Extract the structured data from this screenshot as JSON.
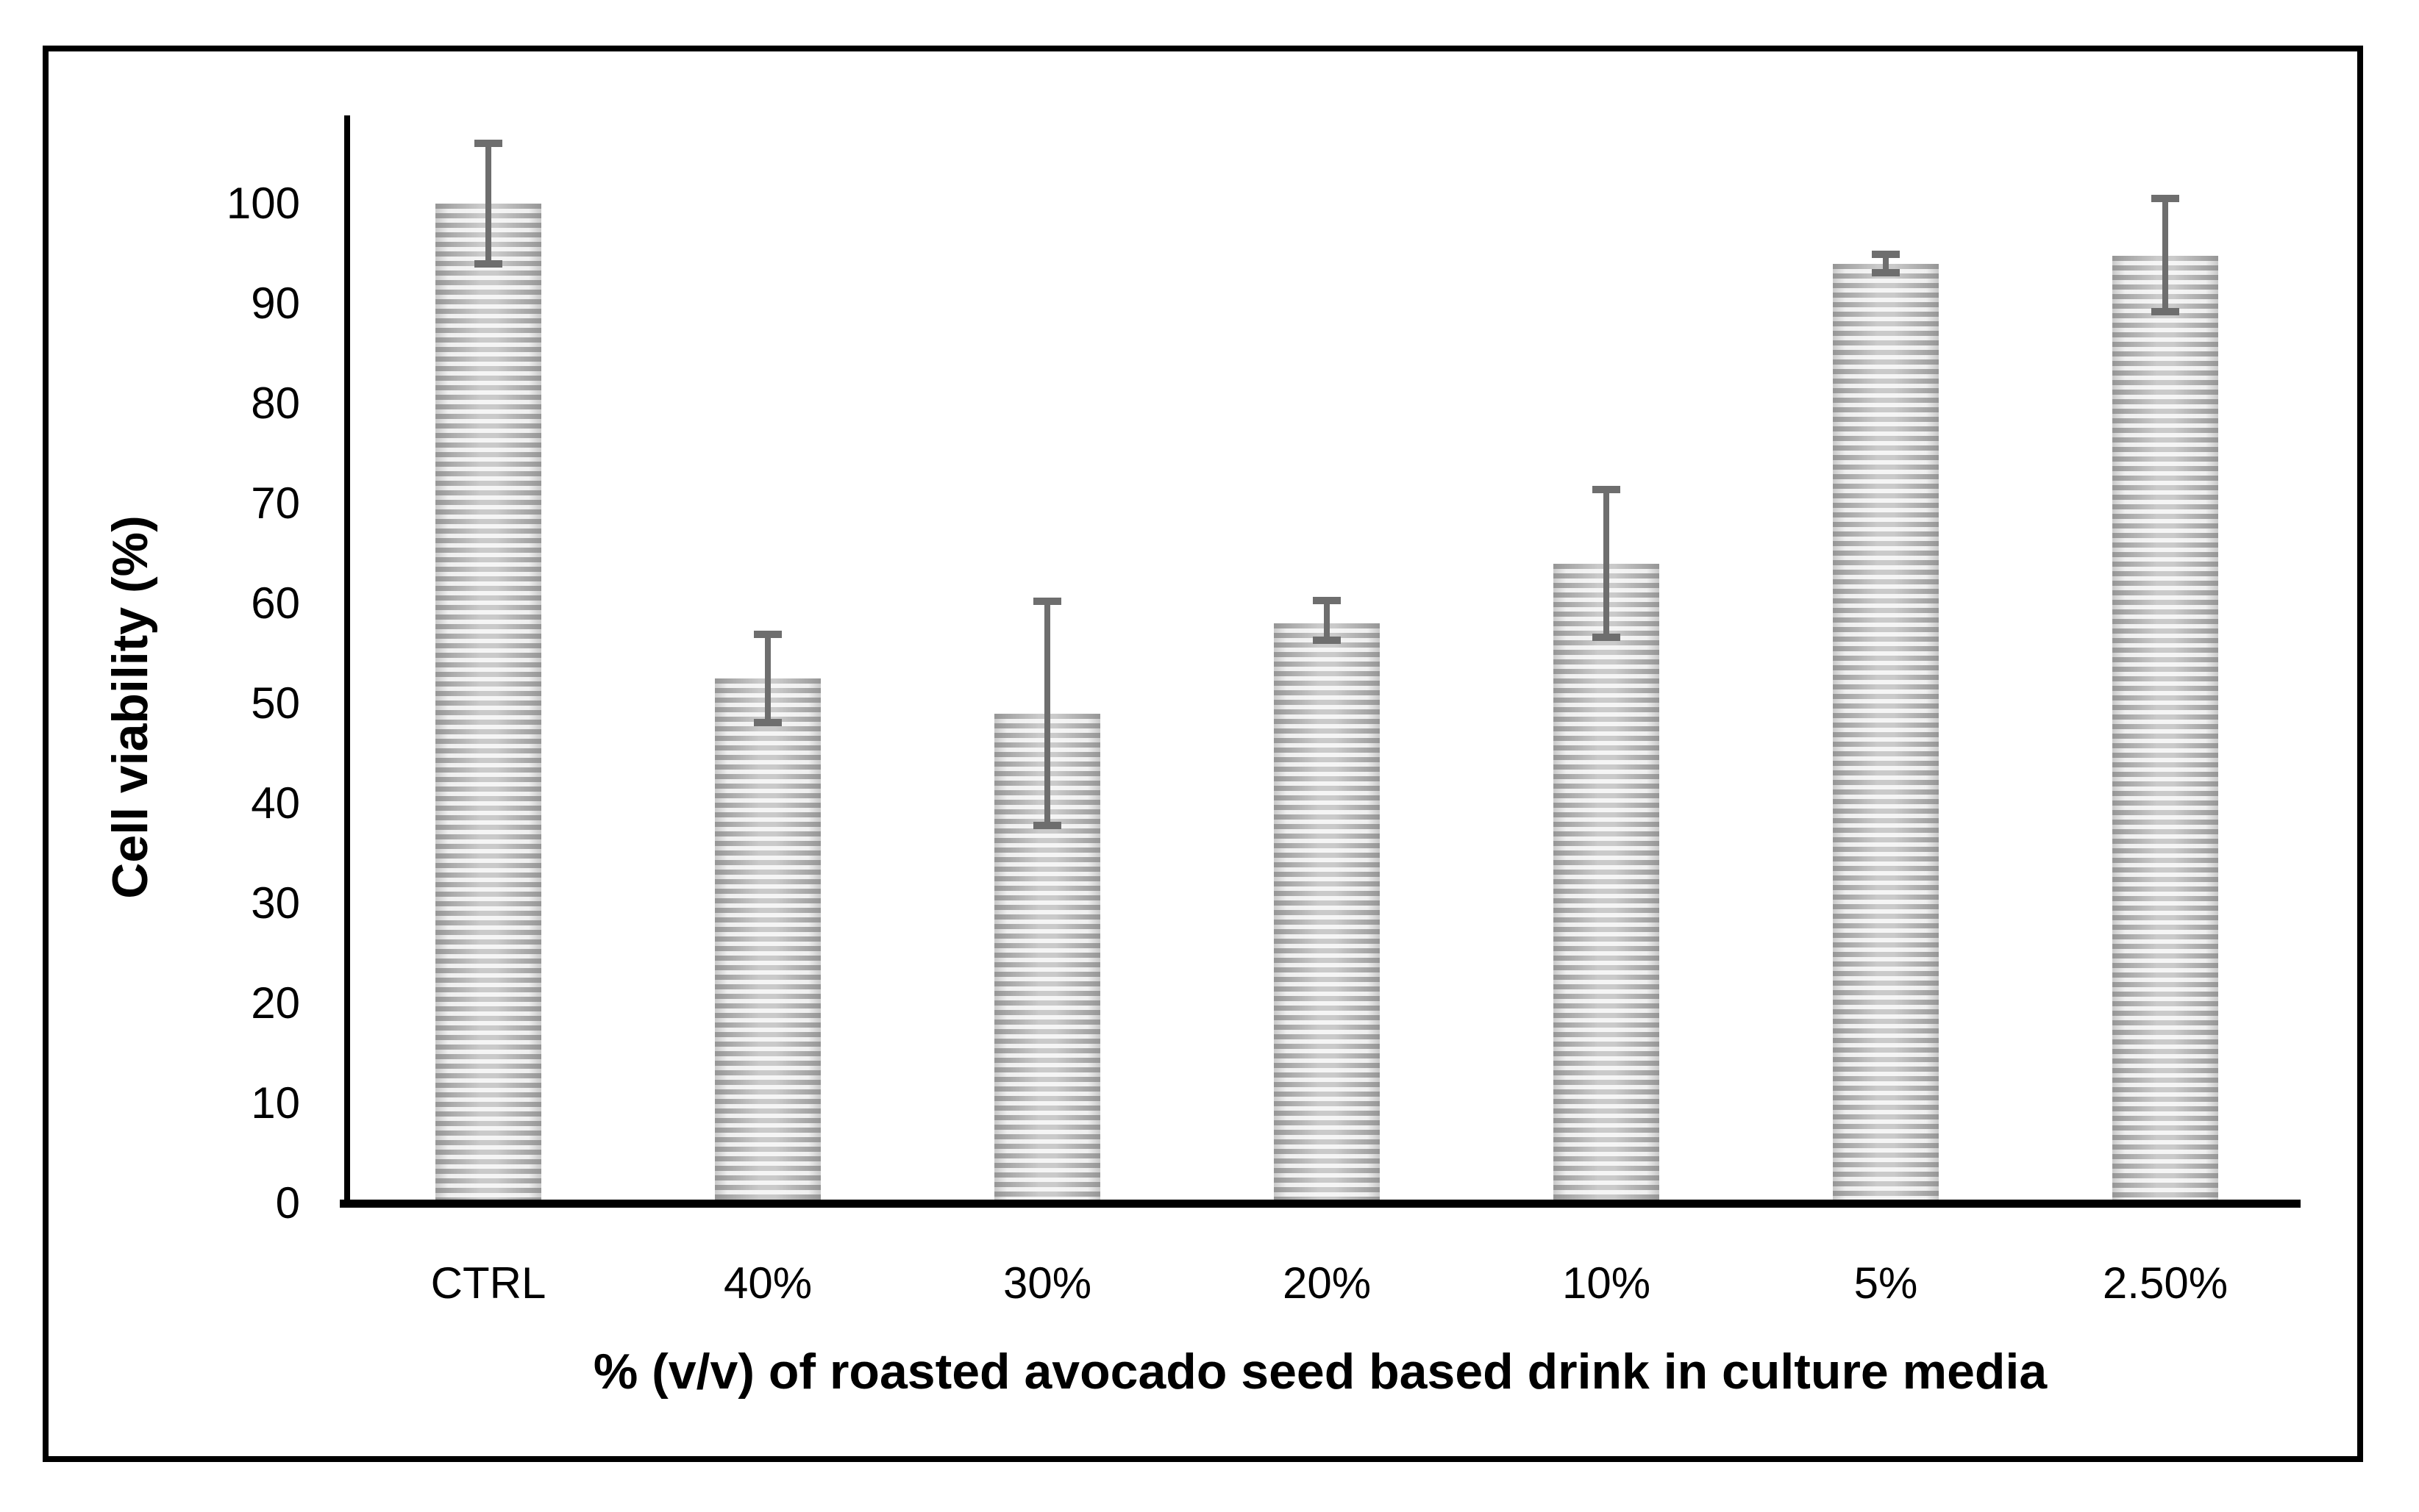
{
  "figure": {
    "background": "#ffffff",
    "border_color": "#000000"
  },
  "chart_data": {
    "type": "bar",
    "title": "",
    "xlabel": "% (v/v) of roasted avocado seed based drink in culture media",
    "ylabel": "Cell viability (%)",
    "categories": [
      "CTRL",
      "40%",
      "30%",
      "20%",
      "10%",
      "5%",
      "2.50%"
    ],
    "values": [
      100,
      52.5,
      49,
      58,
      64,
      94,
      94.8
    ],
    "error_plus": [
      6,
      4.4,
      11.2,
      2.3,
      7.4,
      0.9,
      5.7
    ],
    "error_minus": [
      6,
      4.4,
      11.2,
      1.7,
      7.4,
      0.9,
      5.6
    ],
    "yticks": [
      0,
      10,
      20,
      30,
      40,
      50,
      60,
      70,
      80,
      90,
      100
    ],
    "ylim": [
      0,
      108.5
    ],
    "grid": false,
    "legend": null,
    "bar_pattern": "horizontal-stripes",
    "colors": {
      "bar_stripe_dark": "#a6a6a6",
      "bar_stripe_light": "#efefef",
      "error_bar": "#6e6e6e",
      "axis": "#000000",
      "text": "#000000"
    }
  }
}
